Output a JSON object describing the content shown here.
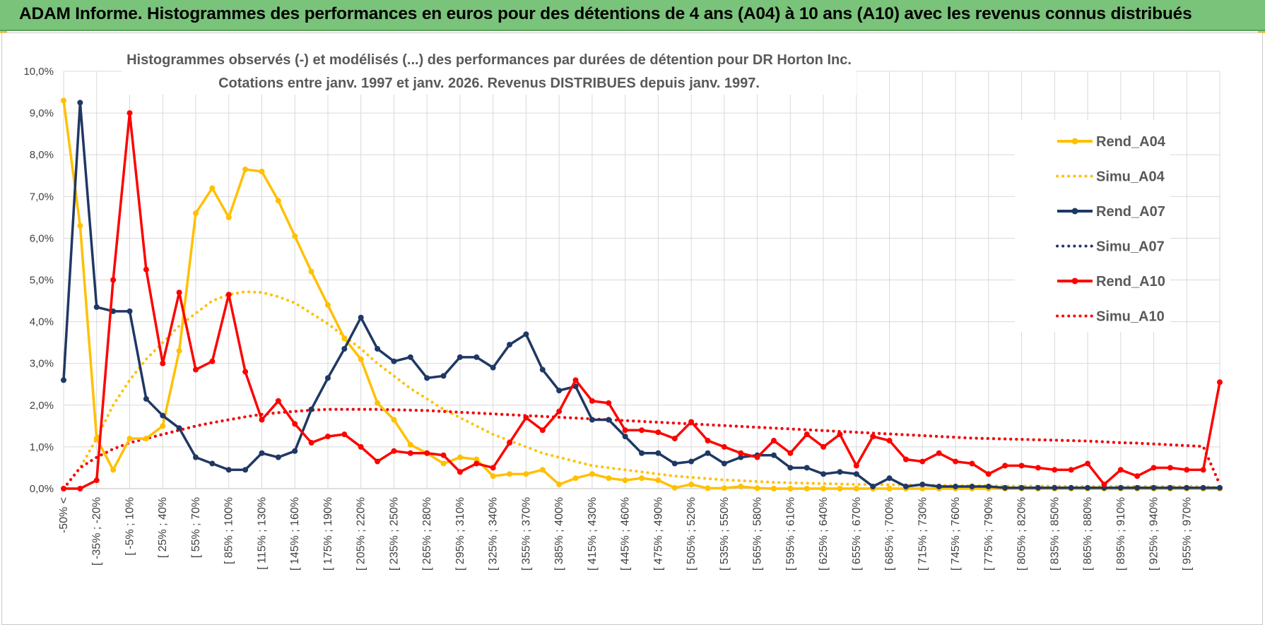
{
  "header": {
    "title": "ADAM Informe. Histogrammes des performances en euros pour des détentions de 4 ans (A04) à 10 ans (A10) avec les revenus connus distribués"
  },
  "colors": {
    "banner": "#7ac37a",
    "A04": "#ffc000",
    "A07": "#1f3864",
    "A10": "#ff0000",
    "grid": "#d9d9d9"
  },
  "chart_data": {
    "type": "line",
    "title_lines": [
      "Histogrammes observés (-) et modélisés (...) des performances par durées de détention pour DR Horton Inc.",
      "Cotations entre janv. 1997 et janv. 2026. Revenus DISTRIBUES depuis janv. 1997."
    ],
    "ylim": [
      0,
      10
    ],
    "yticks": [
      "0,0%",
      "1,0%",
      "2,0%",
      "3,0%",
      "4,0%",
      "5,0%",
      "6,0%",
      "7,0%",
      "8,0%",
      "9,0%",
      "10,0%"
    ],
    "xtick_labels": [
      "-50% <",
      "[ -35% ; -20%",
      "[ -5% ; 10%",
      "[ 25% ; 40%",
      "[ 55% ; 70%",
      "[ 85% ; 100%",
      "[ 115% ; 130%",
      "[ 145% ; 160%",
      "[ 175% ; 190%",
      "[ 205% ; 220%",
      "[ 235% ; 250%",
      "[ 265% ; 280%",
      "[ 295% ; 310%",
      "[ 325% ; 340%",
      "[ 355% ; 370%",
      "[ 385% ; 400%",
      "[ 415% ; 430%",
      "[ 445% ; 460%",
      "[ 475% ; 490%",
      "[ 505% ; 520%",
      "[ 535% ; 550%",
      "[ 565% ; 580%",
      "[ 595% ; 610%",
      "[ 625% ; 640%",
      "[ 655% ; 670%",
      "[ 685% ; 700%",
      "[ 715% ; 730%",
      "[ 745% ; 760%",
      "[ 775% ; 790%",
      "[ 805% ; 820%",
      "[ 835% ; 850%",
      "[ 865% ; 880%",
      "[ 895% ; 910%",
      "[ 925% ; 940%",
      "[ 955% ; 970%"
    ],
    "category_count": 71,
    "series": [
      {
        "name": "Rend_A04",
        "style": "solid",
        "color": "#ffc000",
        "values": [
          9.3,
          6.3,
          1.2,
          0.45,
          1.2,
          1.2,
          1.5,
          3.3,
          6.6,
          7.2,
          6.5,
          7.65,
          7.6,
          6.9,
          6.05,
          5.2,
          4.4,
          3.6,
          3.1,
          2.05,
          1.65,
          1.05,
          0.85,
          0.6,
          0.75,
          0.7,
          0.3,
          0.35,
          0.35,
          0.45,
          0.1,
          0.25,
          0.35,
          0.25,
          0.2,
          0.25,
          0.2,
          0.02,
          0.1,
          0.01,
          0.01,
          0.05,
          0.01,
          0.0,
          0.0,
          0.0,
          0.0,
          0.0,
          0.0,
          0.0,
          0.0,
          0.0,
          0.0,
          0.0,
          0.0,
          0.0,
          0.0,
          0.0,
          0.0,
          0.0,
          0.0,
          0.0,
          0.0,
          0.0,
          0.0,
          0.0,
          0.0,
          0.0,
          0.0,
          0.0,
          0.0
        ]
      },
      {
        "name": "Simu_A04",
        "style": "dotted",
        "color": "#ffc000",
        "values": [
          0.0,
          0.5,
          1.2,
          2.0,
          2.6,
          3.1,
          3.5,
          3.9,
          4.2,
          4.5,
          4.65,
          4.72,
          4.7,
          4.6,
          4.45,
          4.2,
          3.95,
          3.65,
          3.35,
          3.0,
          2.7,
          2.4,
          2.15,
          1.9,
          1.7,
          1.5,
          1.3,
          1.15,
          1.0,
          0.85,
          0.75,
          0.65,
          0.55,
          0.5,
          0.45,
          0.4,
          0.35,
          0.3,
          0.27,
          0.24,
          0.21,
          0.19,
          0.17,
          0.15,
          0.14,
          0.13,
          0.12,
          0.11,
          0.1,
          0.1,
          0.09,
          0.09,
          0.08,
          0.08,
          0.07,
          0.07,
          0.07,
          0.06,
          0.06,
          0.06,
          0.06,
          0.05,
          0.05,
          0.05,
          0.05,
          0.05,
          0.05,
          0.05,
          0.05,
          0.05,
          0.02
        ]
      },
      {
        "name": "Rend_A07",
        "style": "solid",
        "color": "#1f3864",
        "values": [
          2.6,
          9.25,
          4.35,
          4.25,
          4.25,
          2.15,
          1.75,
          1.45,
          0.75,
          0.6,
          0.45,
          0.45,
          0.85,
          0.75,
          0.9,
          1.9,
          2.65,
          3.35,
          4.1,
          3.35,
          3.05,
          3.15,
          2.65,
          2.7,
          3.15,
          3.15,
          2.9,
          3.45,
          3.7,
          2.85,
          2.35,
          2.45,
          1.65,
          1.65,
          1.25,
          0.85,
          0.85,
          0.6,
          0.65,
          0.85,
          0.6,
          0.75,
          0.8,
          0.8,
          0.5,
          0.5,
          0.35,
          0.4,
          0.35,
          0.05,
          0.25,
          0.05,
          0.1,
          0.05,
          0.05,
          0.05,
          0.05,
          0.02,
          0.02,
          0.02,
          0.02,
          0.02,
          0.02,
          0.02,
          0.02,
          0.02,
          0.02,
          0.02,
          0.02,
          0.02,
          0.02
        ]
      },
      {
        "name": "Simu_A07",
        "style": "dotted",
        "color": "#1f3864",
        "values": [
          0.0,
          0.5,
          0.75,
          0.95,
          1.1,
          1.2,
          1.3,
          1.4,
          1.5,
          1.58,
          1.65,
          1.72,
          1.78,
          1.82,
          1.85,
          1.88,
          1.9,
          1.9,
          1.9,
          1.9,
          1.89,
          1.88,
          1.87,
          1.85,
          1.83,
          1.81,
          1.79,
          1.77,
          1.75,
          1.73,
          1.71,
          1.69,
          1.67,
          1.65,
          1.63,
          1.61,
          1.59,
          1.57,
          1.55,
          1.53,
          1.51,
          1.49,
          1.47,
          1.45,
          1.43,
          1.41,
          1.39,
          1.37,
          1.35,
          1.33,
          1.31,
          1.29,
          1.27,
          1.25,
          1.23,
          1.21,
          1.2,
          1.19,
          1.18,
          1.17,
          1.16,
          1.15,
          1.14,
          1.12,
          1.1,
          1.09,
          1.07,
          1.05,
          1.03,
          1.01,
          0.1
        ]
      },
      {
        "name": "Rend_A10",
        "style": "solid",
        "color": "#ff0000",
        "values": [
          0.0,
          0.0,
          0.2,
          5.0,
          9.0,
          5.25,
          3.0,
          4.7,
          2.85,
          3.05,
          4.65,
          2.8,
          1.65,
          2.1,
          1.55,
          1.1,
          1.25,
          1.3,
          1.0,
          0.65,
          0.9,
          0.85,
          0.85,
          0.8,
          0.4,
          0.6,
          0.5,
          1.1,
          1.7,
          1.4,
          1.85,
          2.6,
          2.1,
          2.05,
          1.4,
          1.4,
          1.35,
          1.2,
          1.6,
          1.15,
          1.0,
          0.85,
          0.75,
          1.15,
          0.85,
          1.3,
          1.0,
          1.3,
          0.55,
          1.25,
          1.15,
          0.7,
          0.65,
          0.85,
          0.65,
          0.6,
          0.35,
          0.55,
          0.55,
          0.5,
          0.45,
          0.45,
          0.6,
          0.1,
          0.45,
          0.3,
          0.5,
          0.5,
          0.45,
          0.45,
          2.55
        ]
      },
      {
        "name": "Simu_A10",
        "style": "dotted",
        "color": "#ff0000",
        "values": [
          0.0,
          0.5,
          0.75,
          0.95,
          1.1,
          1.2,
          1.3,
          1.4,
          1.5,
          1.58,
          1.65,
          1.72,
          1.78,
          1.82,
          1.85,
          1.88,
          1.9,
          1.9,
          1.9,
          1.9,
          1.89,
          1.88,
          1.87,
          1.85,
          1.83,
          1.81,
          1.79,
          1.77,
          1.75,
          1.73,
          1.71,
          1.69,
          1.67,
          1.65,
          1.63,
          1.61,
          1.59,
          1.57,
          1.55,
          1.53,
          1.51,
          1.49,
          1.47,
          1.45,
          1.43,
          1.41,
          1.39,
          1.37,
          1.35,
          1.33,
          1.31,
          1.29,
          1.27,
          1.25,
          1.23,
          1.21,
          1.2,
          1.19,
          1.18,
          1.17,
          1.16,
          1.15,
          1.14,
          1.12,
          1.1,
          1.09,
          1.07,
          1.05,
          1.03,
          1.01,
          0.1
        ]
      }
    ],
    "legend": [
      "Rend_A04",
      "Simu_A04",
      "Rend_A07",
      "Simu_A07",
      "Rend_A10",
      "Simu_A10"
    ],
    "legend_position": "right"
  }
}
